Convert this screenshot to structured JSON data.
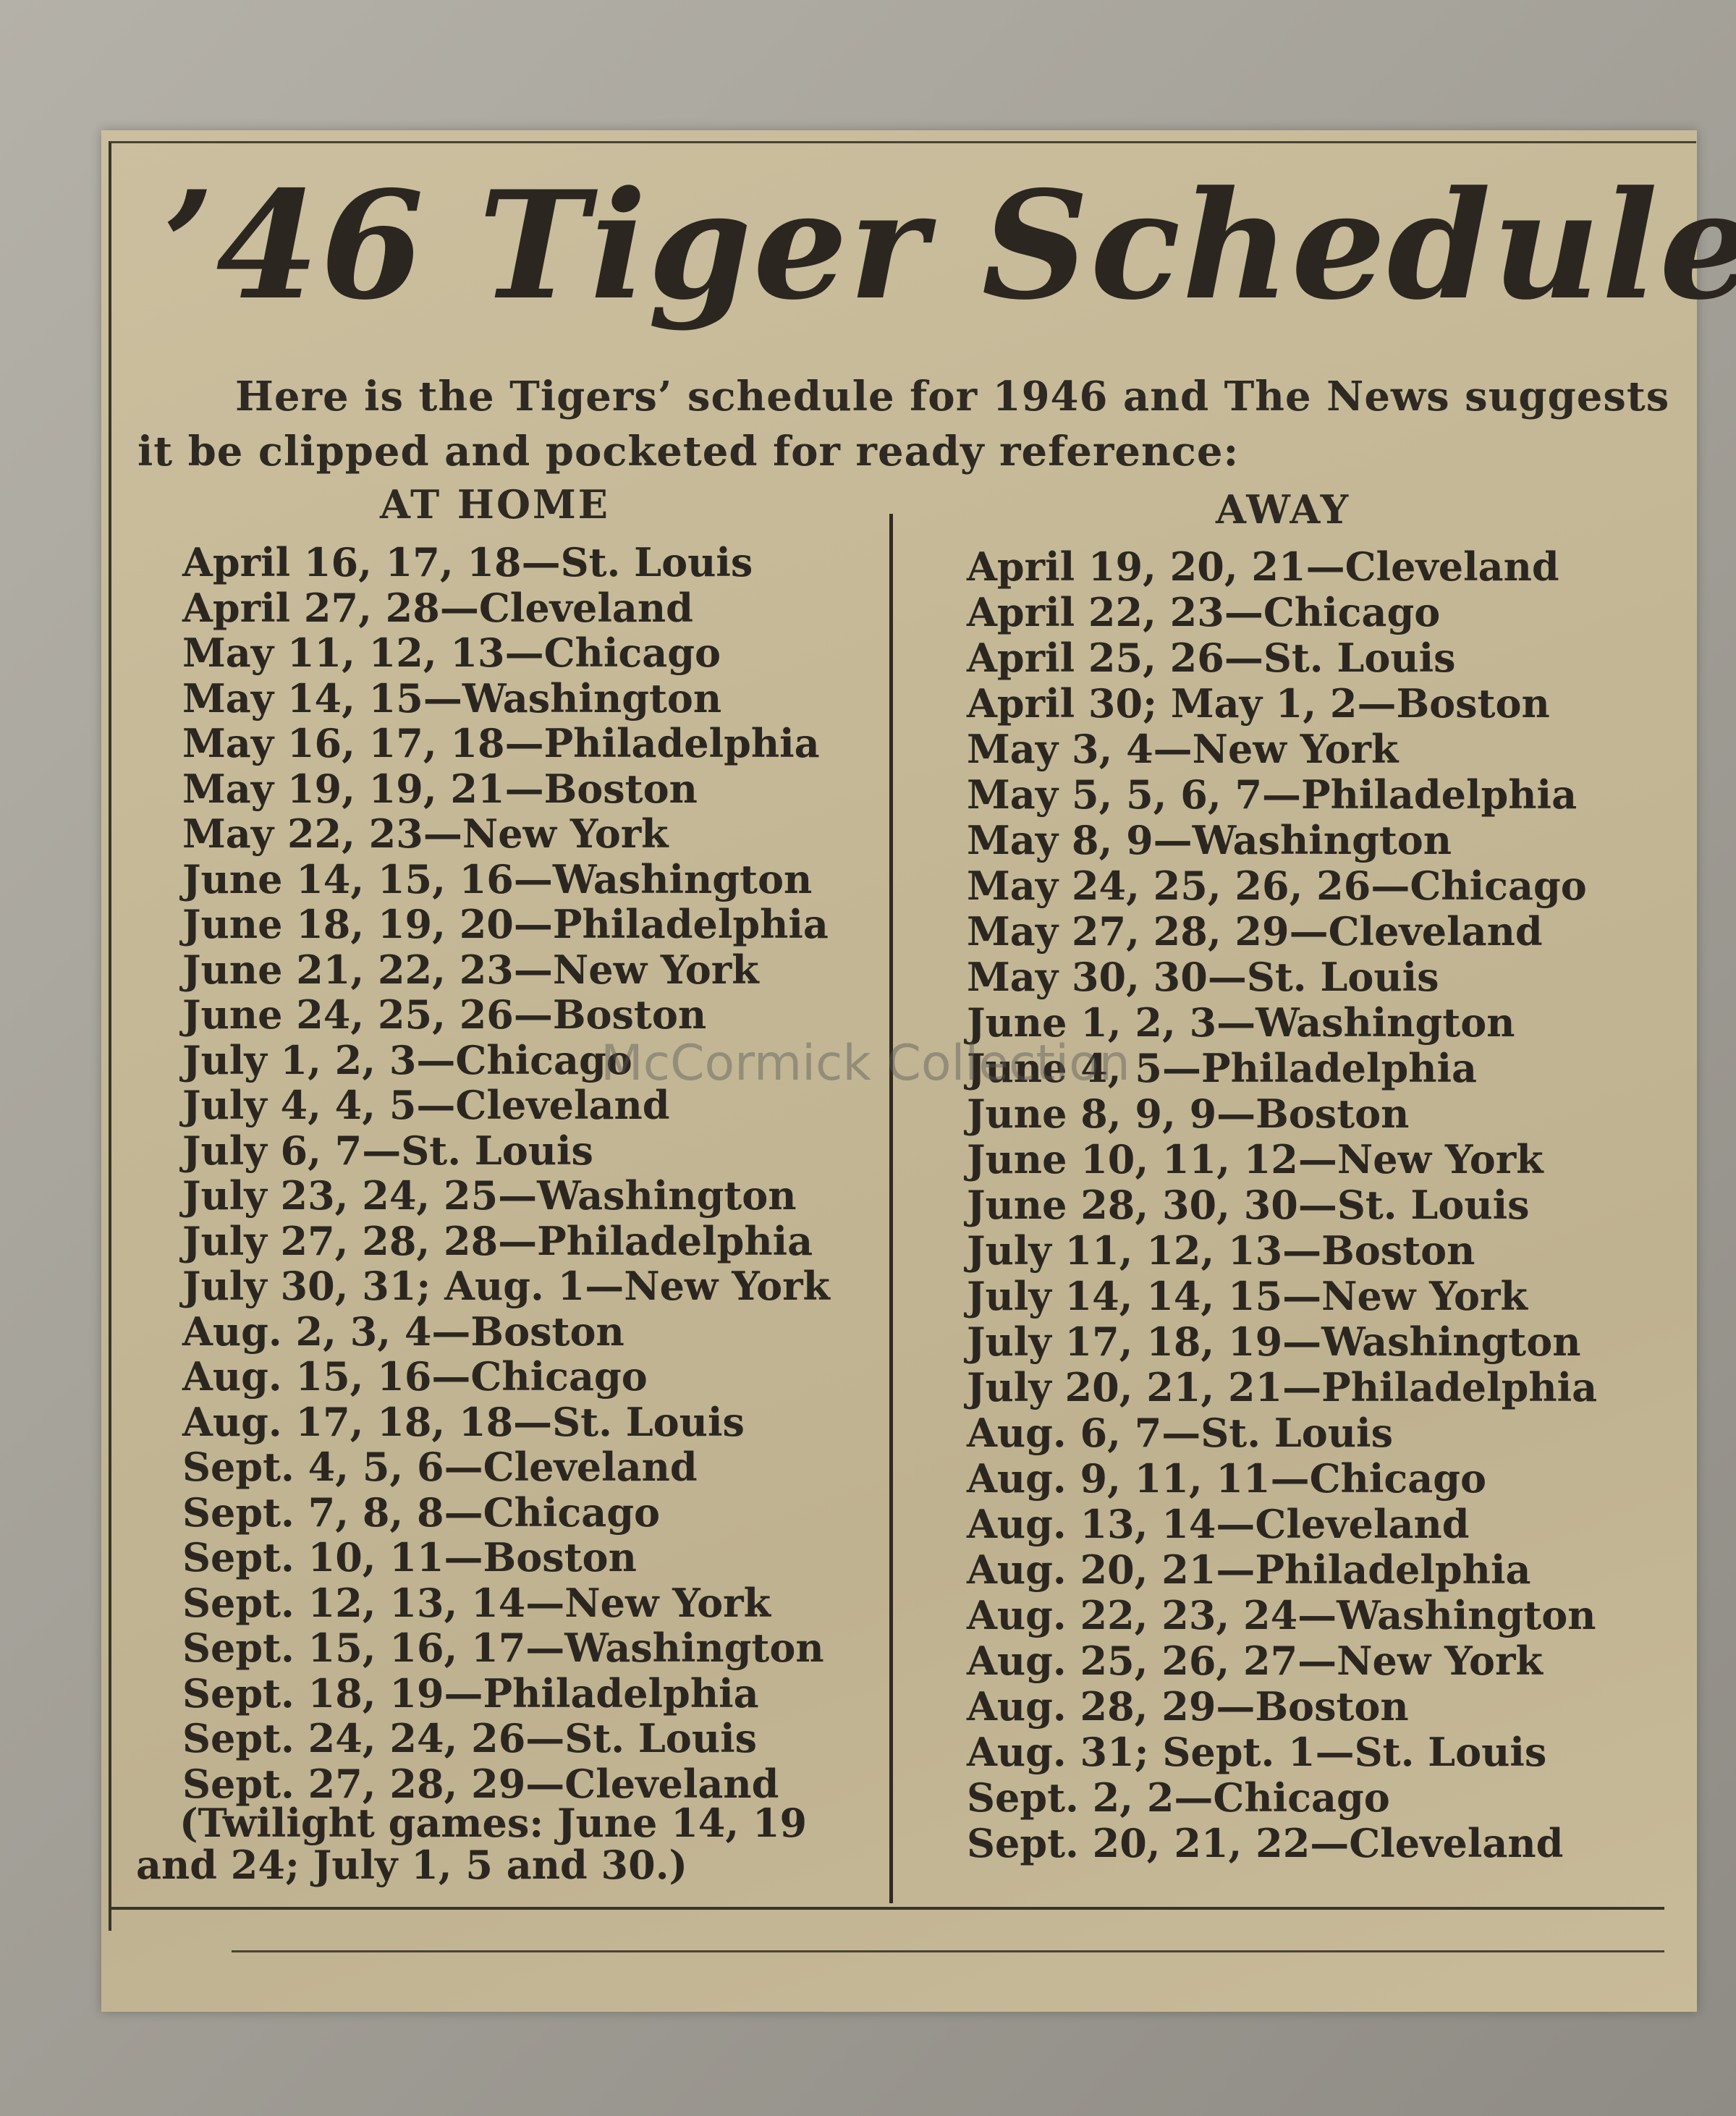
{
  "title": "’46 Tiger Schedule",
  "intro": "Here is the Tigers’ schedule for 1946 and The News suggests it be clipped and pocketed for ready reference:",
  "home": {
    "heading": "AT HOME",
    "games": [
      "April 16, 17, 18—St. Louis",
      "April 27, 28—Cleveland",
      "May 11, 12, 13—Chicago",
      "May 14, 15—Washington",
      "May 16, 17, 18—Philadelphia",
      "May 19, 19, 21—Boston",
      "May 22, 23—New York",
      "June 14, 15, 16—Washington",
      "June 18, 19, 20—Philadelphia",
      "June 21, 22, 23—New York",
      "June 24, 25, 26—Boston",
      "July 1, 2, 3—Chicago",
      "July 4, 4, 5—Cleveland",
      "July 6, 7—St. Louis",
      "July 23, 24, 25—Washington",
      "July 27, 28, 28—Philadelphia",
      "July 30, 31; Aug. 1—New York",
      "Aug. 2, 3, 4—Boston",
      "Aug. 15, 16—Chicago",
      "Aug. 17, 18, 18—St. Louis",
      "Sept. 4, 5, 6—Cleveland",
      "Sept. 7, 8, 8—Chicago",
      "Sept. 10, 11—Boston",
      "Sept. 12, 13, 14—New York",
      "Sept. 15, 16, 17—Washington",
      "Sept. 18, 19—Philadelphia",
      "Sept. 24, 24, 26—St. Louis",
      "Sept. 27, 28, 29—Cleveland"
    ],
    "note": "(Twilight games: June 14, 19 and 24; July 1, 5 and 30.)"
  },
  "away": {
    "heading": "AWAY",
    "games": [
      "April 19, 20, 21—Cleveland",
      "April 22, 23—Chicago",
      "April 25, 26—St. Louis",
      "April 30; May 1, 2—Boston",
      "May 3, 4—New York",
      "May 5, 5, 6, 7—Philadelphia",
      "May 8, 9—Washington",
      "May 24, 25, 26, 26—Chicago",
      "May 27, 28, 29—Cleveland",
      "May 30, 30—St. Louis",
      "June 1, 2, 3—Washington",
      "June 4, 5—Philadelphia",
      "June 8, 9, 9—Boston",
      "June 10, 11, 12—New York",
      "June 28, 30, 30—St. Louis",
      "July 11, 12, 13—Boston",
      "July 14, 14, 15—New York",
      "July 17, 18, 19—Washington",
      "July 20, 21, 21—Philadelphia",
      "Aug. 6, 7—St. Louis",
      "Aug. 9, 11, 11—Chicago",
      "Aug. 13, 14—Cleveland",
      "Aug. 20, 21—Philadelphia",
      "Aug. 22, 23, 24—Washington",
      "Aug. 25, 26, 27—New York",
      "Aug. 28, 29—Boston",
      "Aug. 31; Sept. 1—St. Louis",
      "Sept. 2, 2—Chicago",
      "Sept. 20, 21, 22—Cleveland"
    ]
  },
  "watermark": "McCormick Collection"
}
